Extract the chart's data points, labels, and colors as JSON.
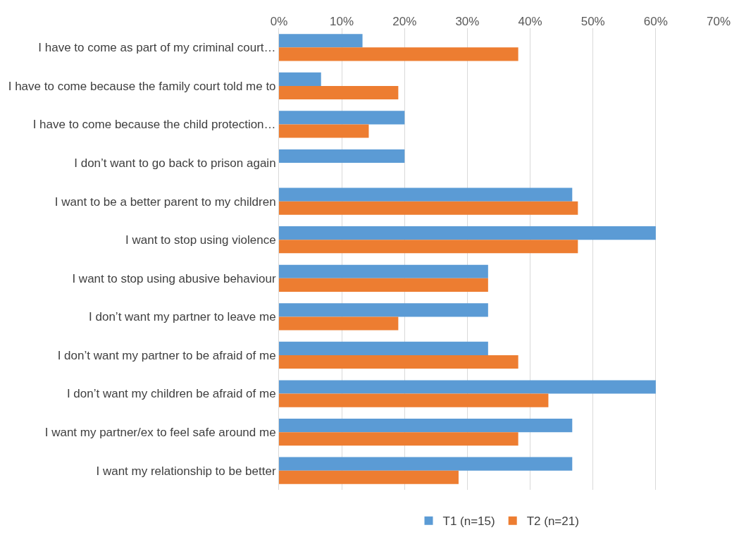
{
  "chart_data": {
    "type": "bar",
    "orientation": "horizontal",
    "categories": [
      "I have to come as part of my criminal court…",
      "I have to come because the family court told me to",
      "I have to come because the child protection…",
      "I don’t want to go back to prison again",
      "I want to be a better parent to my children",
      "I want to stop using violence",
      "I want to stop using abusive behaviour",
      "I don’t want my partner to leave me",
      "I don’t want my partner to be afraid of me",
      "I don’t want my children be afraid of me",
      "I want my partner/ex to feel safe around me",
      "I want my relationship to be better"
    ],
    "series": [
      {
        "name": "T1 (n=15)",
        "color": "#5b9bd5",
        "values": [
          13.3,
          6.7,
          20,
          20,
          46.7,
          60,
          33.3,
          33.3,
          33.3,
          60,
          46.7,
          46.7
        ]
      },
      {
        "name": "T2 (n=21)",
        "color": "#ed7d31",
        "values": [
          38.1,
          19.0,
          14.3,
          null,
          47.6,
          47.6,
          33.3,
          19.0,
          38.1,
          42.9,
          38.1,
          28.6
        ]
      }
    ],
    "xlim": [
      0,
      70
    ],
    "xticks": [
      {
        "value": 0,
        "label": "0%"
      },
      {
        "value": 10,
        "label": "10%"
      },
      {
        "value": 20,
        "label": "20%"
      },
      {
        "value": 30,
        "label": "30%"
      },
      {
        "value": 40,
        "label": "40%"
      },
      {
        "value": 50,
        "label": "50%"
      },
      {
        "value": 60,
        "label": "60%"
      },
      {
        "value": 70,
        "label": "70%"
      }
    ],
    "grid": "x",
    "legend": "bottom"
  }
}
